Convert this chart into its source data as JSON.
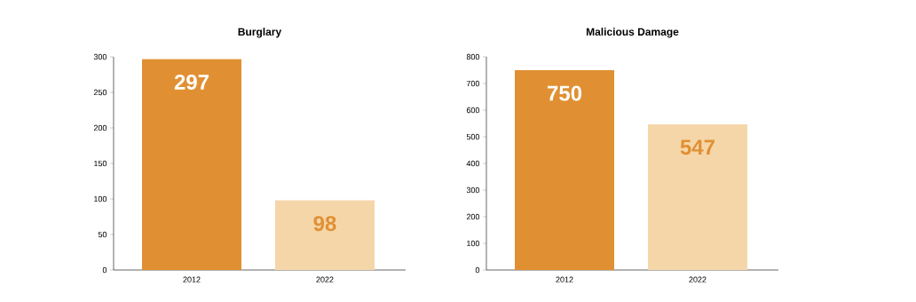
{
  "chart_data": [
    {
      "type": "bar",
      "title": "Burglary",
      "categories": [
        "2012",
        "2022"
      ],
      "values": [
        297,
        98
      ],
      "colors": [
        "#e09033",
        "#f5d6a9"
      ],
      "ylim": [
        0,
        300
      ],
      "yticks": [
        0,
        50,
        100,
        150,
        200,
        250,
        300
      ],
      "data_labels": true,
      "grid": false,
      "legend": false
    },
    {
      "type": "bar",
      "title": "Malicious Damage",
      "categories": [
        "2012",
        "2022"
      ],
      "values": [
        750,
        547
      ],
      "colors": [
        "#e09033",
        "#f5d6a9"
      ],
      "ylim": [
        0,
        800
      ],
      "yticks": [
        0,
        100,
        200,
        300,
        400,
        500,
        600,
        700,
        800
      ],
      "data_labels": true,
      "grid": false,
      "legend": false
    }
  ]
}
